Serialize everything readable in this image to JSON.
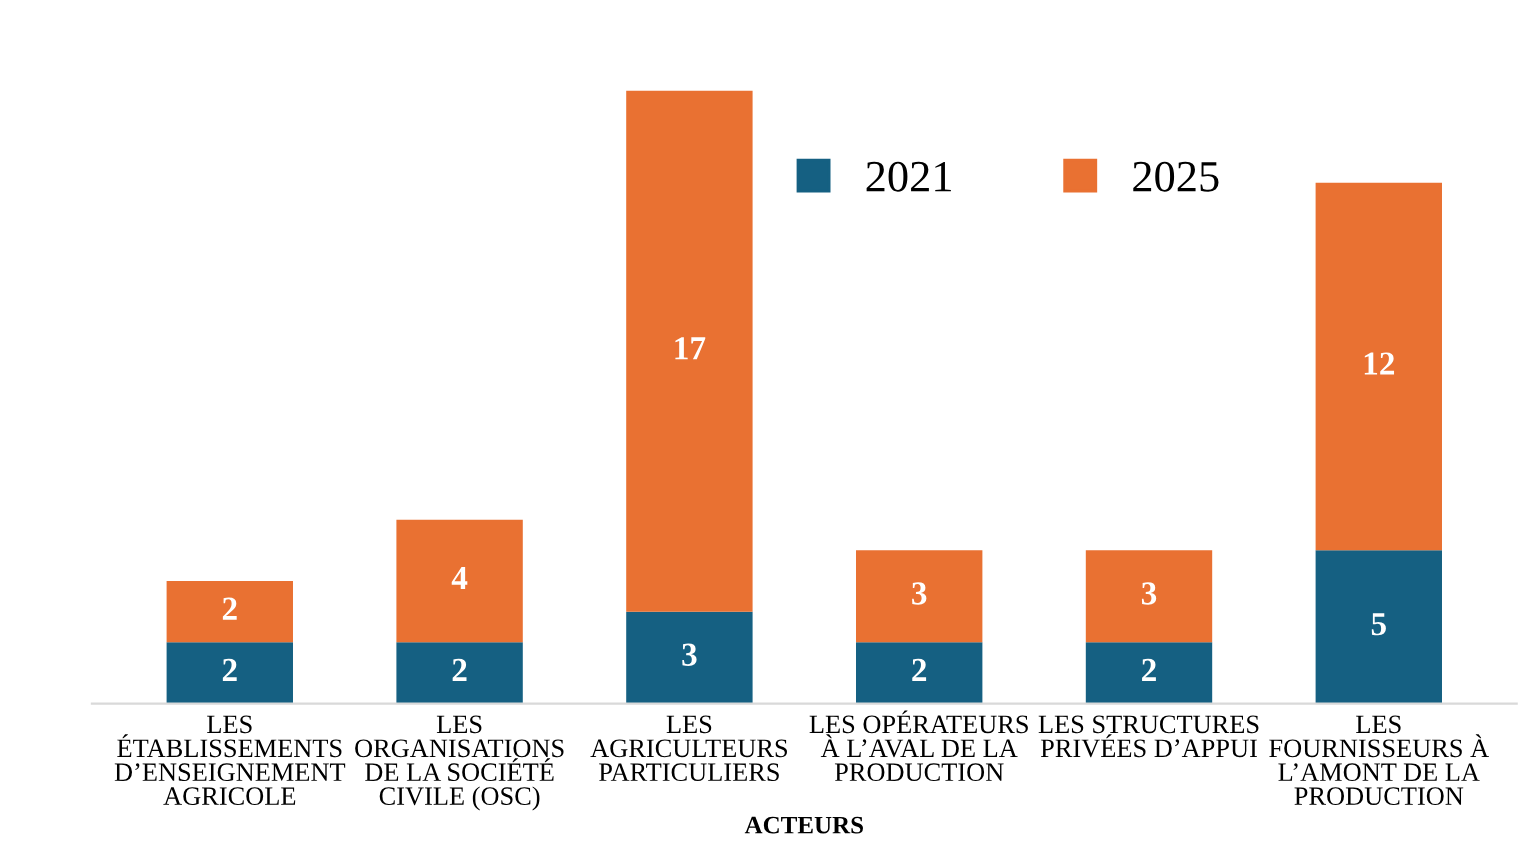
{
  "chart_data": {
    "type": "bar",
    "stacked": true,
    "xlabel": "ACTEURS",
    "categories": [
      "LES\nÉTABLISSEMENTS\nD’ENSEIGNEMENT\nAGRICOLE",
      "LES\nORGANISATIONS\nDE LA SOCIÉTÉ\nCIVILE (OSC)",
      "LES\nAGRICULTEURS\nPARTICULIERS",
      "LES OPÉRATEURS\nÀ L’AVAL DE LA\nPRODUCTION",
      "LES STRUCTURES\nPRIVÉES D’APPUI",
      "LES\nFOURNISSEURS À\nL’AMONT DE LA\nPRODUCTION"
    ],
    "series": [
      {
        "name": "2021",
        "color": "#156082",
        "values": [
          2,
          2,
          3,
          2,
          2,
          5
        ]
      },
      {
        "name": "2025",
        "color": "#e97132",
        "values": [
          2,
          4,
          17,
          3,
          3,
          12
        ]
      }
    ],
    "data_labels": true,
    "legend": "top right",
    "grid": false
  }
}
